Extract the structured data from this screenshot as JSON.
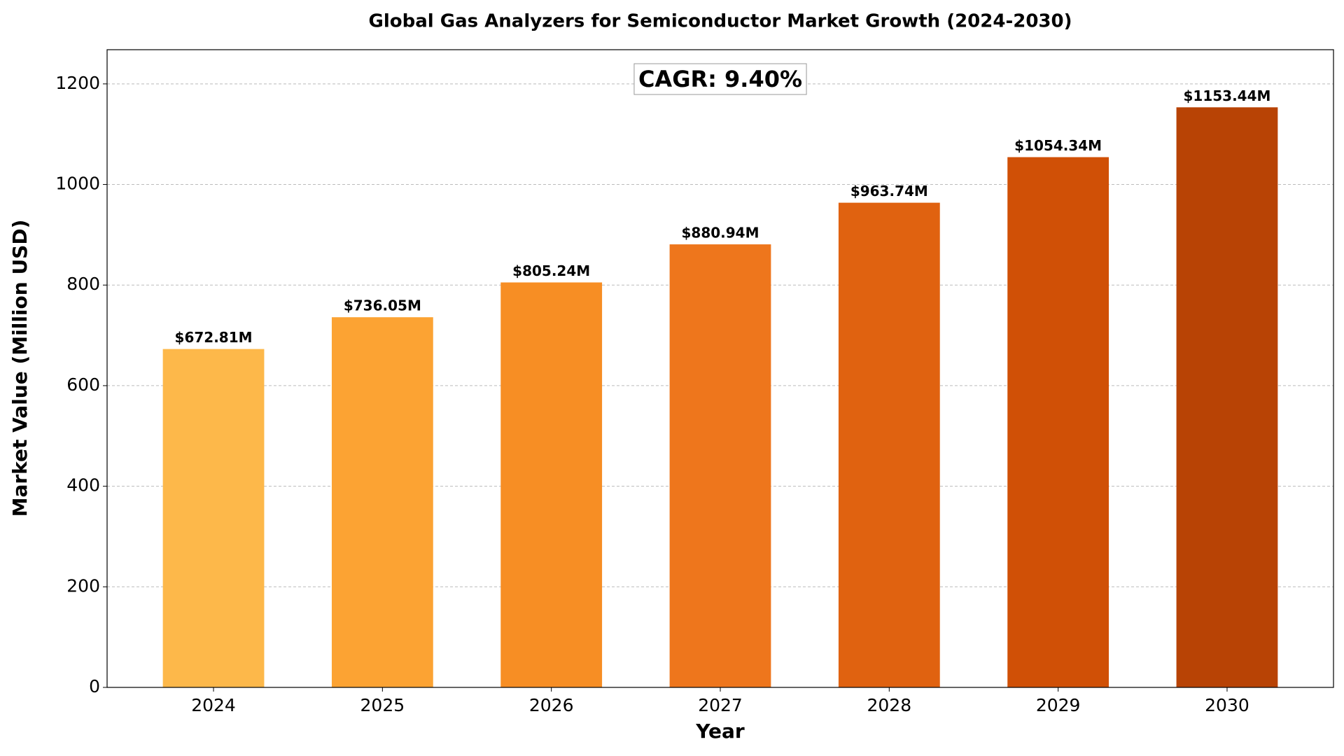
{
  "chart_data": {
    "type": "bar",
    "title": "Global Gas Analyzers for Semiconductor Market Growth (2024-2030)",
    "xlabel": "Year",
    "ylabel": "Market Value (Million USD)",
    "annotation": "CAGR: 9.40%",
    "categories": [
      "2024",
      "2025",
      "2026",
      "2027",
      "2028",
      "2029",
      "2030"
    ],
    "values": [
      672.81,
      736.05,
      805.24,
      880.94,
      963.74,
      1054.34,
      1153.44
    ],
    "value_labels": [
      "$672.81M",
      "$736.05M",
      "$805.24M",
      "$880.94M",
      "$963.74M",
      "$1054.34M",
      "$1153.44M"
    ],
    "colors": [
      "#fdb84a",
      "#fca333",
      "#f78e24",
      "#ee761c",
      "#e06210",
      "#d05006",
      "#b84305"
    ],
    "ylim": [
      0,
      1268
    ],
    "yticks": [
      0,
      200,
      400,
      600,
      800,
      1000,
      1200
    ],
    "grid": true
  }
}
